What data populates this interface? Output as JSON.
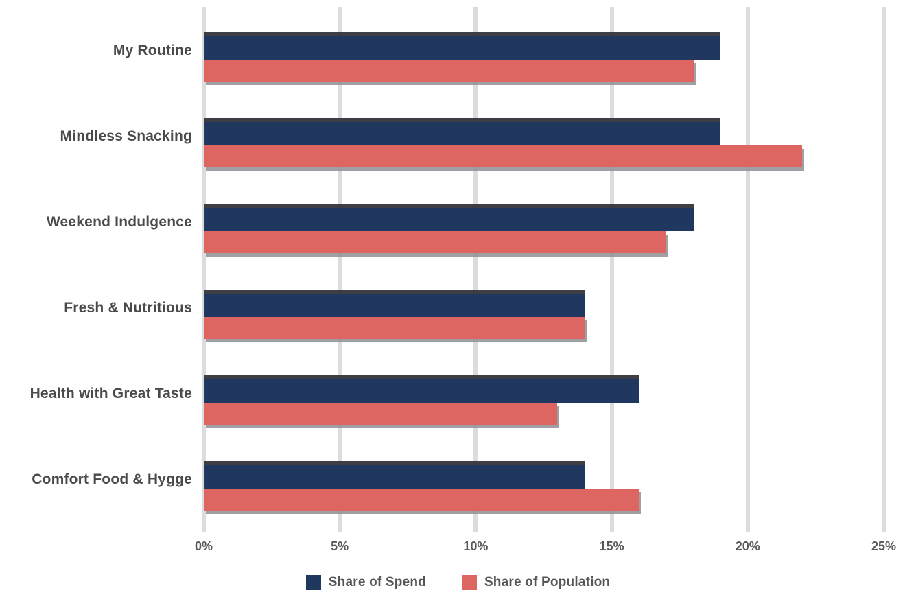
{
  "chart": {
    "background": "#ffffff",
    "grid_color": "#dcdcdc",
    "category_label_color": "#4a4a4a",
    "tick_label_color": "#595959",
    "legend_label_color": "#555555"
  },
  "chart_data": {
    "type": "bar",
    "orientation": "horizontal",
    "title": "",
    "categories": [
      "My Routine",
      "Mindless Snacking",
      "Weekend Indulgence",
      "Fresh & Nutritious",
      "Health with Great Taste",
      "Comfort Food & Hygge"
    ],
    "series": [
      {
        "name": "Share of Spend",
        "color": "#20375f",
        "values": [
          19,
          19,
          18,
          14,
          16,
          14
        ]
      },
      {
        "name": "Share of Population",
        "color": "#dd6562",
        "values": [
          18,
          22,
          17,
          14,
          13,
          16
        ]
      }
    ],
    "x_ticks": [
      "0%",
      "5%",
      "10%",
      "15%",
      "20%",
      "25%"
    ],
    "xlim": [
      0,
      25
    ],
    "grid": true,
    "legend_position": "bottom"
  }
}
